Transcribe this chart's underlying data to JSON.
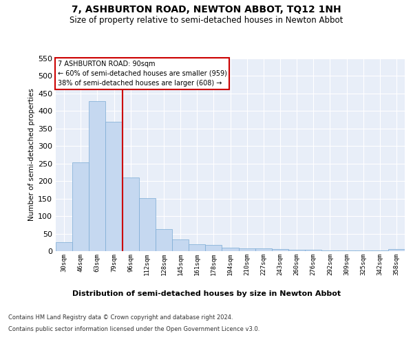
{
  "title": "7, ASHBURTON ROAD, NEWTON ABBOT, TQ12 1NH",
  "subtitle": "Size of property relative to semi-detached houses in Newton Abbot",
  "xlabel": "Distribution of semi-detached houses by size in Newton Abbot",
  "ylabel": "Number of semi-detached properties",
  "categories": [
    "30sqm",
    "46sqm",
    "63sqm",
    "79sqm",
    "96sqm",
    "112sqm",
    "128sqm",
    "145sqm",
    "161sqm",
    "178sqm",
    "194sqm",
    "210sqm",
    "227sqm",
    "243sqm",
    "260sqm",
    "276sqm",
    "292sqm",
    "309sqm",
    "325sqm",
    "342sqm",
    "358sqm"
  ],
  "values": [
    25,
    253,
    428,
    370,
    210,
    152,
    63,
    33,
    20,
    17,
    9,
    8,
    8,
    5,
    3,
    3,
    2,
    1,
    1,
    1,
    6
  ],
  "bar_color": "#c5d8f0",
  "bar_edge_color": "#7aaad4",
  "property_label": "7 ASHBURTON ROAD: 90sqm",
  "pct_smaller": 60,
  "pct_smaller_count": 959,
  "pct_larger": 38,
  "pct_larger_count": 608,
  "vline_color": "#cc0000",
  "vline_x": 3.5,
  "annotation_box_color": "#cc0000",
  "ylim": [
    0,
    550
  ],
  "yticks": [
    0,
    50,
    100,
    150,
    200,
    250,
    300,
    350,
    400,
    450,
    500,
    550
  ],
  "background_color": "#e8eef8",
  "grid_color": "#ffffff",
  "footer_line1": "Contains HM Land Registry data © Crown copyright and database right 2024.",
  "footer_line2": "Contains public sector information licensed under the Open Government Licence v3.0."
}
